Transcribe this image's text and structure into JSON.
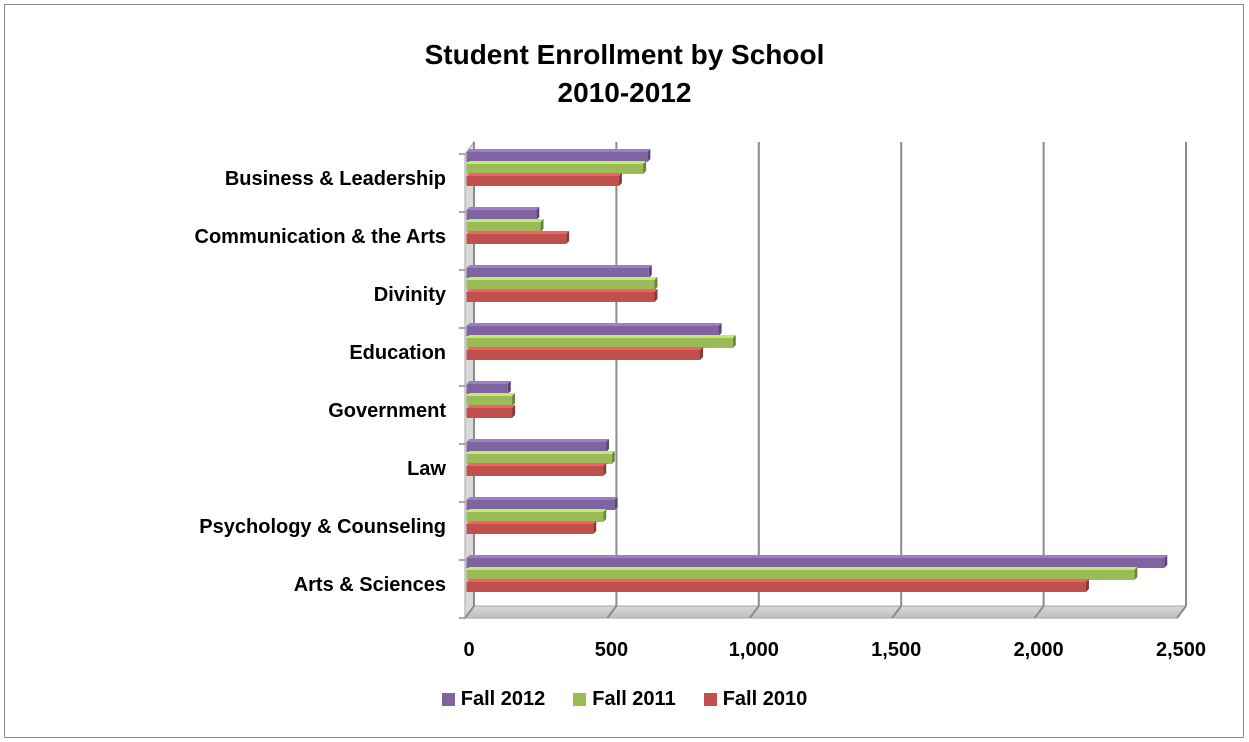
{
  "chart_data": {
    "type": "bar",
    "orientation": "horizontal",
    "title": "Student Enrollment by School",
    "subtitle": "2010-2012",
    "categories": [
      "Business & Leadership",
      "Communication & the Arts",
      "Divinity",
      "Education",
      "Government",
      "Law",
      "Psychology & Counseling",
      "Arts & Sciences"
    ],
    "series": [
      {
        "name": "Fall 2012",
        "color": "#8064A2",
        "values": [
          635,
          245,
          640,
          885,
          145,
          490,
          520,
          2450
        ]
      },
      {
        "name": "Fall 2011",
        "color": "#9BBB59",
        "values": [
          620,
          260,
          660,
          935,
          160,
          510,
          480,
          2345
        ]
      },
      {
        "name": "Fall 2010",
        "color": "#C0504D",
        "values": [
          535,
          350,
          660,
          820,
          160,
          480,
          445,
          2175
        ]
      }
    ],
    "xlim": [
      0,
      2500
    ],
    "xticks": [
      "0",
      "500",
      "1,000",
      "1,500",
      "2,000",
      "2,500"
    ],
    "xtick_values": [
      0,
      500,
      1000,
      1500,
      2000,
      2500
    ],
    "grid": true,
    "legend_position": "bottom"
  }
}
